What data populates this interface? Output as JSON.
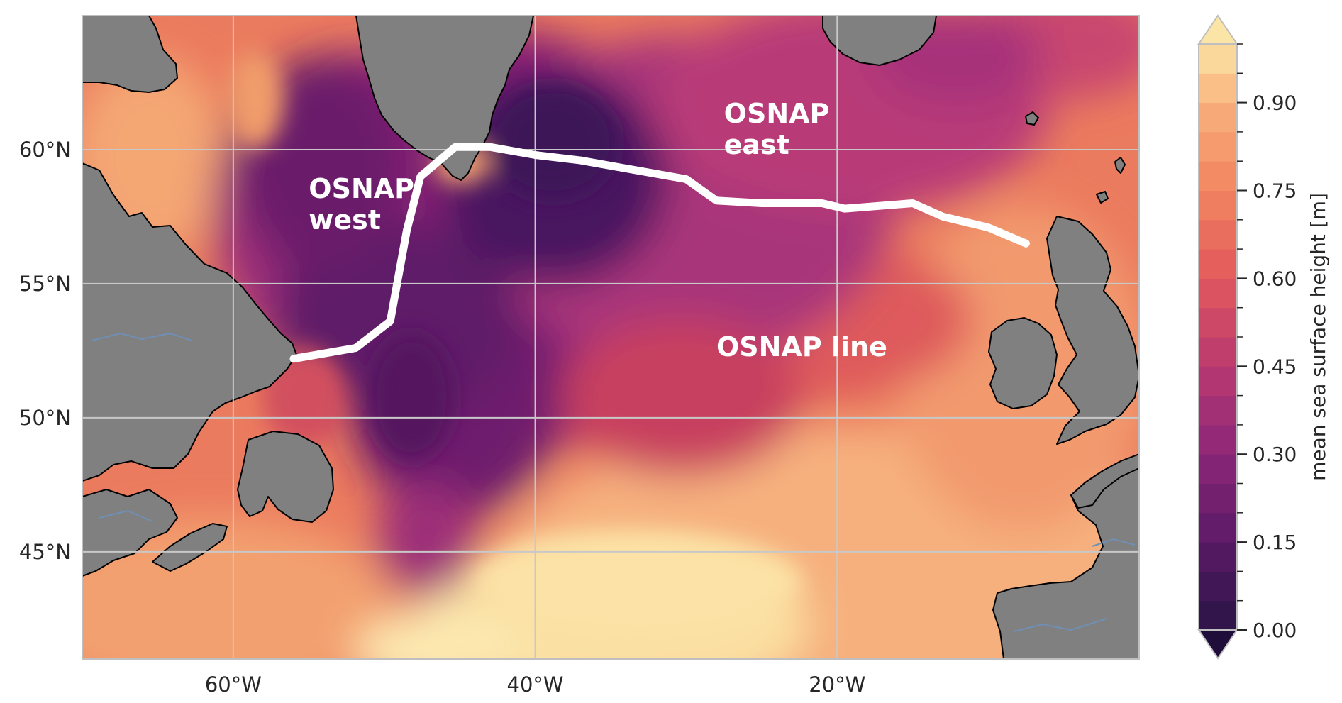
{
  "map": {
    "lon_range": [
      -70,
      0
    ],
    "lat_range": [
      41,
      65
    ],
    "projection": "PlateCarree",
    "grid": true,
    "x_ticks": [
      {
        "lon": -60,
        "label": "60°W"
      },
      {
        "lon": -40,
        "label": "40°W"
      },
      {
        "lon": -20,
        "label": "20°W"
      }
    ],
    "y_ticks": [
      {
        "lat": 60,
        "label": "60°N"
      },
      {
        "lat": 55,
        "label": "55°N"
      },
      {
        "lat": 50,
        "label": "50°N"
      },
      {
        "lat": 45,
        "label": "45°N"
      }
    ],
    "land_color": "#808080",
    "coastline_color": "#000000",
    "river_color": "#6f8fb5",
    "colormap": "magma (matplotlib)",
    "labels": [
      {
        "id": "osnap-west-label",
        "lines": [
          "OSNAP",
          "west"
        ],
        "lon": -55,
        "lat": 58.2
      },
      {
        "id": "osnap-east-label",
        "lines": [
          "OSNAP",
          "east"
        ],
        "lon": -27.5,
        "lat": 61
      },
      {
        "id": "osnap-line-label",
        "lines": [
          "OSNAP line"
        ],
        "lon": -28,
        "lat": 52.3
      }
    ],
    "osnap_line": [
      [
        -56.0,
        52.2
      ],
      [
        -51.9,
        52.6
      ],
      [
        -49.6,
        53.6
      ],
      [
        -48.5,
        57.0
      ],
      [
        -47.6,
        59.0
      ],
      [
        -45.3,
        60.1
      ],
      [
        -43.0,
        60.1
      ],
      [
        -40.0,
        59.8
      ],
      [
        -37.0,
        59.6
      ],
      [
        -33.0,
        59.2
      ],
      [
        -30.0,
        58.9
      ],
      [
        -28.0,
        58.1
      ],
      [
        -25.0,
        58.0
      ],
      [
        -21.0,
        58.0
      ],
      [
        -19.5,
        57.8
      ],
      [
        -15.0,
        58.0
      ],
      [
        -13.0,
        57.5
      ],
      [
        -10.0,
        57.1
      ],
      [
        -7.5,
        56.5
      ]
    ]
  },
  "colorbar": {
    "label": "mean sea surface height [m]",
    "vmin": 0.0,
    "vmax": 1.0,
    "levels": 20,
    "extend": "both",
    "ticks": [
      {
        "value": 0.0,
        "label": "0.00"
      },
      {
        "value": 0.15,
        "label": "0.15"
      },
      {
        "value": 0.3,
        "label": "0.30"
      },
      {
        "value": 0.45,
        "label": "0.45"
      },
      {
        "value": 0.6,
        "label": "0.60"
      },
      {
        "value": 0.75,
        "label": "0.75"
      },
      {
        "value": 0.9,
        "label": "0.90"
      }
    ]
  }
}
